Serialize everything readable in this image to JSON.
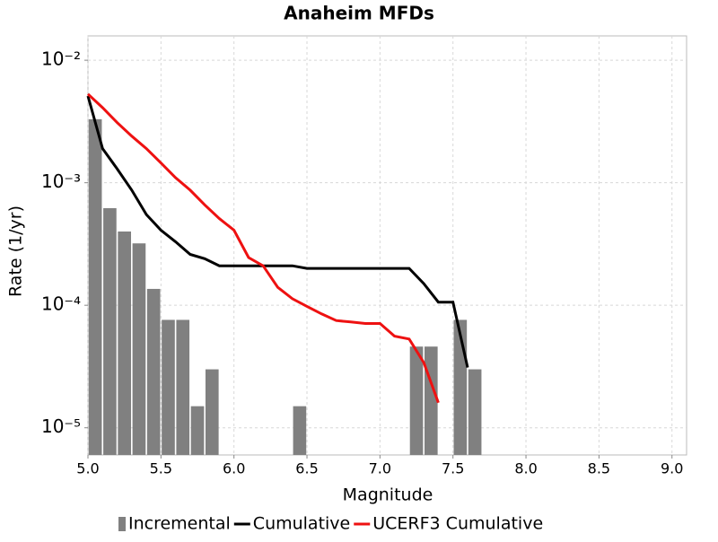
{
  "chart_data": {
    "type": "mfd",
    "title": "Anaheim MFDs",
    "x_label": "Magnitude",
    "y_label": "Rate (1/yr)",
    "xlim": [
      5.0,
      9.1
    ],
    "xticks": [
      {
        "value": 5.0,
        "label": "5.0"
      },
      5.5,
      {
        "value": 6.0,
        "label": "6.0"
      },
      6.5,
      {
        "value": 7.0,
        "label": "7.0"
      },
      7.5,
      {
        "value": 8.0,
        "label": "8.0"
      },
      8.5,
      {
        "value": 9.0,
        "label": "9.0"
      }
    ],
    "ylim": [
      6e-06,
      0.0158
    ],
    "log_y": true,
    "grid": true,
    "legend": "bottom",
    "yticks": [
      {
        "value": 1e-05,
        "label": "10⁻⁵"
      },
      {
        "value": 0.0001,
        "label": "10⁻⁴"
      },
      {
        "value": 0.001,
        "label": "10⁻³"
      },
      {
        "value": 0.01,
        "label": "10⁻²"
      }
    ],
    "series": [
      {
        "name": "Incremental",
        "kind": "bar",
        "color": "#808080",
        "x": [
          5.05,
          5.15,
          5.25,
          5.35,
          5.45,
          5.55,
          5.65,
          5.75,
          5.85,
          6.45,
          7.25,
          7.35,
          7.55,
          7.65
        ],
        "values": [
          0.0033,
          0.00062,
          0.0004,
          0.00032,
          0.000136,
          7.6e-05,
          7.6e-05,
          1.5e-05,
          3e-05,
          1.5e-05,
          4.6e-05,
          4.6e-05,
          7.6e-05,
          3e-05
        ]
      },
      {
        "name": "Cumulative",
        "kind": "line",
        "color": "#000000",
        "x": [
          5.0,
          5.1,
          5.2,
          5.3,
          5.4,
          5.5,
          5.6,
          5.7,
          5.8,
          5.9,
          6.0,
          6.1,
          6.2,
          6.3,
          6.4,
          6.5,
          6.6,
          6.7,
          6.8,
          6.9,
          7.0,
          7.1,
          7.2,
          7.3,
          7.4,
          7.5,
          7.6
        ],
        "values": [
          0.0051,
          0.0019,
          0.0013,
          0.00087,
          0.00055,
          0.00041,
          0.00033,
          0.00026,
          0.00024,
          0.00021,
          0.00021,
          0.00021,
          0.00021,
          0.00021,
          0.00021,
          0.0002,
          0.0002,
          0.0002,
          0.0002,
          0.0002,
          0.0002,
          0.0002,
          0.0002,
          0.00015,
          0.000106,
          0.000106,
          3.1e-05
        ]
      },
      {
        "name": "UCERF3 Cumulative",
        "kind": "line",
        "color": "#ee1111",
        "x": [
          5.0,
          5.1,
          5.2,
          5.3,
          5.4,
          5.5,
          5.6,
          5.7,
          5.8,
          5.9,
          6.0,
          6.1,
          6.2,
          6.3,
          6.4,
          6.5,
          6.6,
          6.7,
          6.8,
          6.9,
          7.0,
          7.1,
          7.2,
          7.3,
          7.4
        ],
        "values": [
          0.0053,
          0.0041,
          0.0031,
          0.0024,
          0.0019,
          0.00145,
          0.0011,
          0.00087,
          0.00066,
          0.00051,
          0.00041,
          0.000245,
          0.00021,
          0.00014,
          0.000113,
          9.8e-05,
          8.5e-05,
          7.5e-05,
          7.3e-05,
          7.1e-05,
          7.1e-05,
          5.6e-05,
          5.3e-05,
          3.4e-05,
          1.6e-05
        ]
      }
    ]
  }
}
